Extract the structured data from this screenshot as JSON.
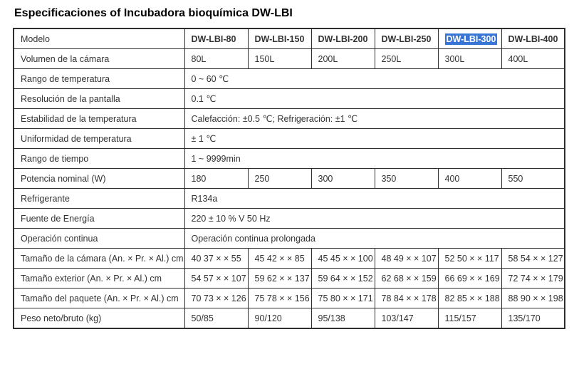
{
  "title": "Especificaciones of Incubadora bioquímica DW-LBI",
  "colors": {
    "selection_bg": "#3875d7",
    "selection_text": "#ffffff",
    "border": "#2e2e2e"
  },
  "table": {
    "header_label": "Modelo",
    "models": [
      "DW-LBI-80",
      "DW-LBI-150",
      "DW-LBI-200",
      "DW-LBI-250",
      "DW-LBI-300",
      "DW-LBI-400"
    ],
    "selected_model": "DW-LBI-300",
    "rows": [
      {
        "label": "Volumen de la cámara",
        "values": [
          "80L",
          "150L",
          "200L",
          "250L",
          "300L",
          "400L"
        ]
      },
      {
        "label": "Rango de temperatura",
        "value": "0 ~ 60 ℃"
      },
      {
        "label": "Resolución de la pantalla",
        "value": "0.1 ℃"
      },
      {
        "label": "Estabilidad de la temperatura",
        "value": "Calefacción: ±0.5 ℃; Refrigeración: ±1 ℃"
      },
      {
        "label": "Uniformidad de temperatura",
        "value": "± 1 ℃"
      },
      {
        "label": "Rango de tiempo",
        "value": "1 ~ 9999min"
      },
      {
        "label": "Potencia nominal (W)",
        "values": [
          "180",
          "250",
          "300",
          "350",
          "400",
          "550"
        ]
      },
      {
        "label": "Refrigerante",
        "value": "R134a"
      },
      {
        "label": "Fuente de Energía",
        "value": "220 ± 10 % V 50 Hz"
      },
      {
        "label": "Operación continua",
        "value": "Operación continua prolongada"
      },
      {
        "label": "Tamaño de la cámara (An. × Pr. × Al.) cm",
        "values": [
          "40 37 × × 55",
          "45 42 × × 85",
          "45 45 × × 100",
          "48 49 × × 107",
          "52 50 × × 117",
          "58 54 × × 127"
        ]
      },
      {
        "label": "Tamaño exterior (An. × Pr. × Al.) cm",
        "values": [
          "54 57 × × 107",
          "59 62 × × 137",
          "59 64 × × 152",
          "62 68 × × 159",
          "66 69 × × 169",
          "72 74 × × 179"
        ]
      },
      {
        "label": "Tamaño del paquete (An. × Pr. × Al.) cm",
        "values": [
          "70 73 × × 126",
          "75 78 × × 156",
          "75 80 × × 171",
          "78 84 × × 178",
          "82 85 × × 188",
          "88 90 × × 198"
        ]
      },
      {
        "label": "Peso neto/bruto (kg)",
        "values": [
          "50/85",
          "90/120",
          "95/138",
          "103/147",
          "115/157",
          "135/170"
        ]
      }
    ]
  }
}
